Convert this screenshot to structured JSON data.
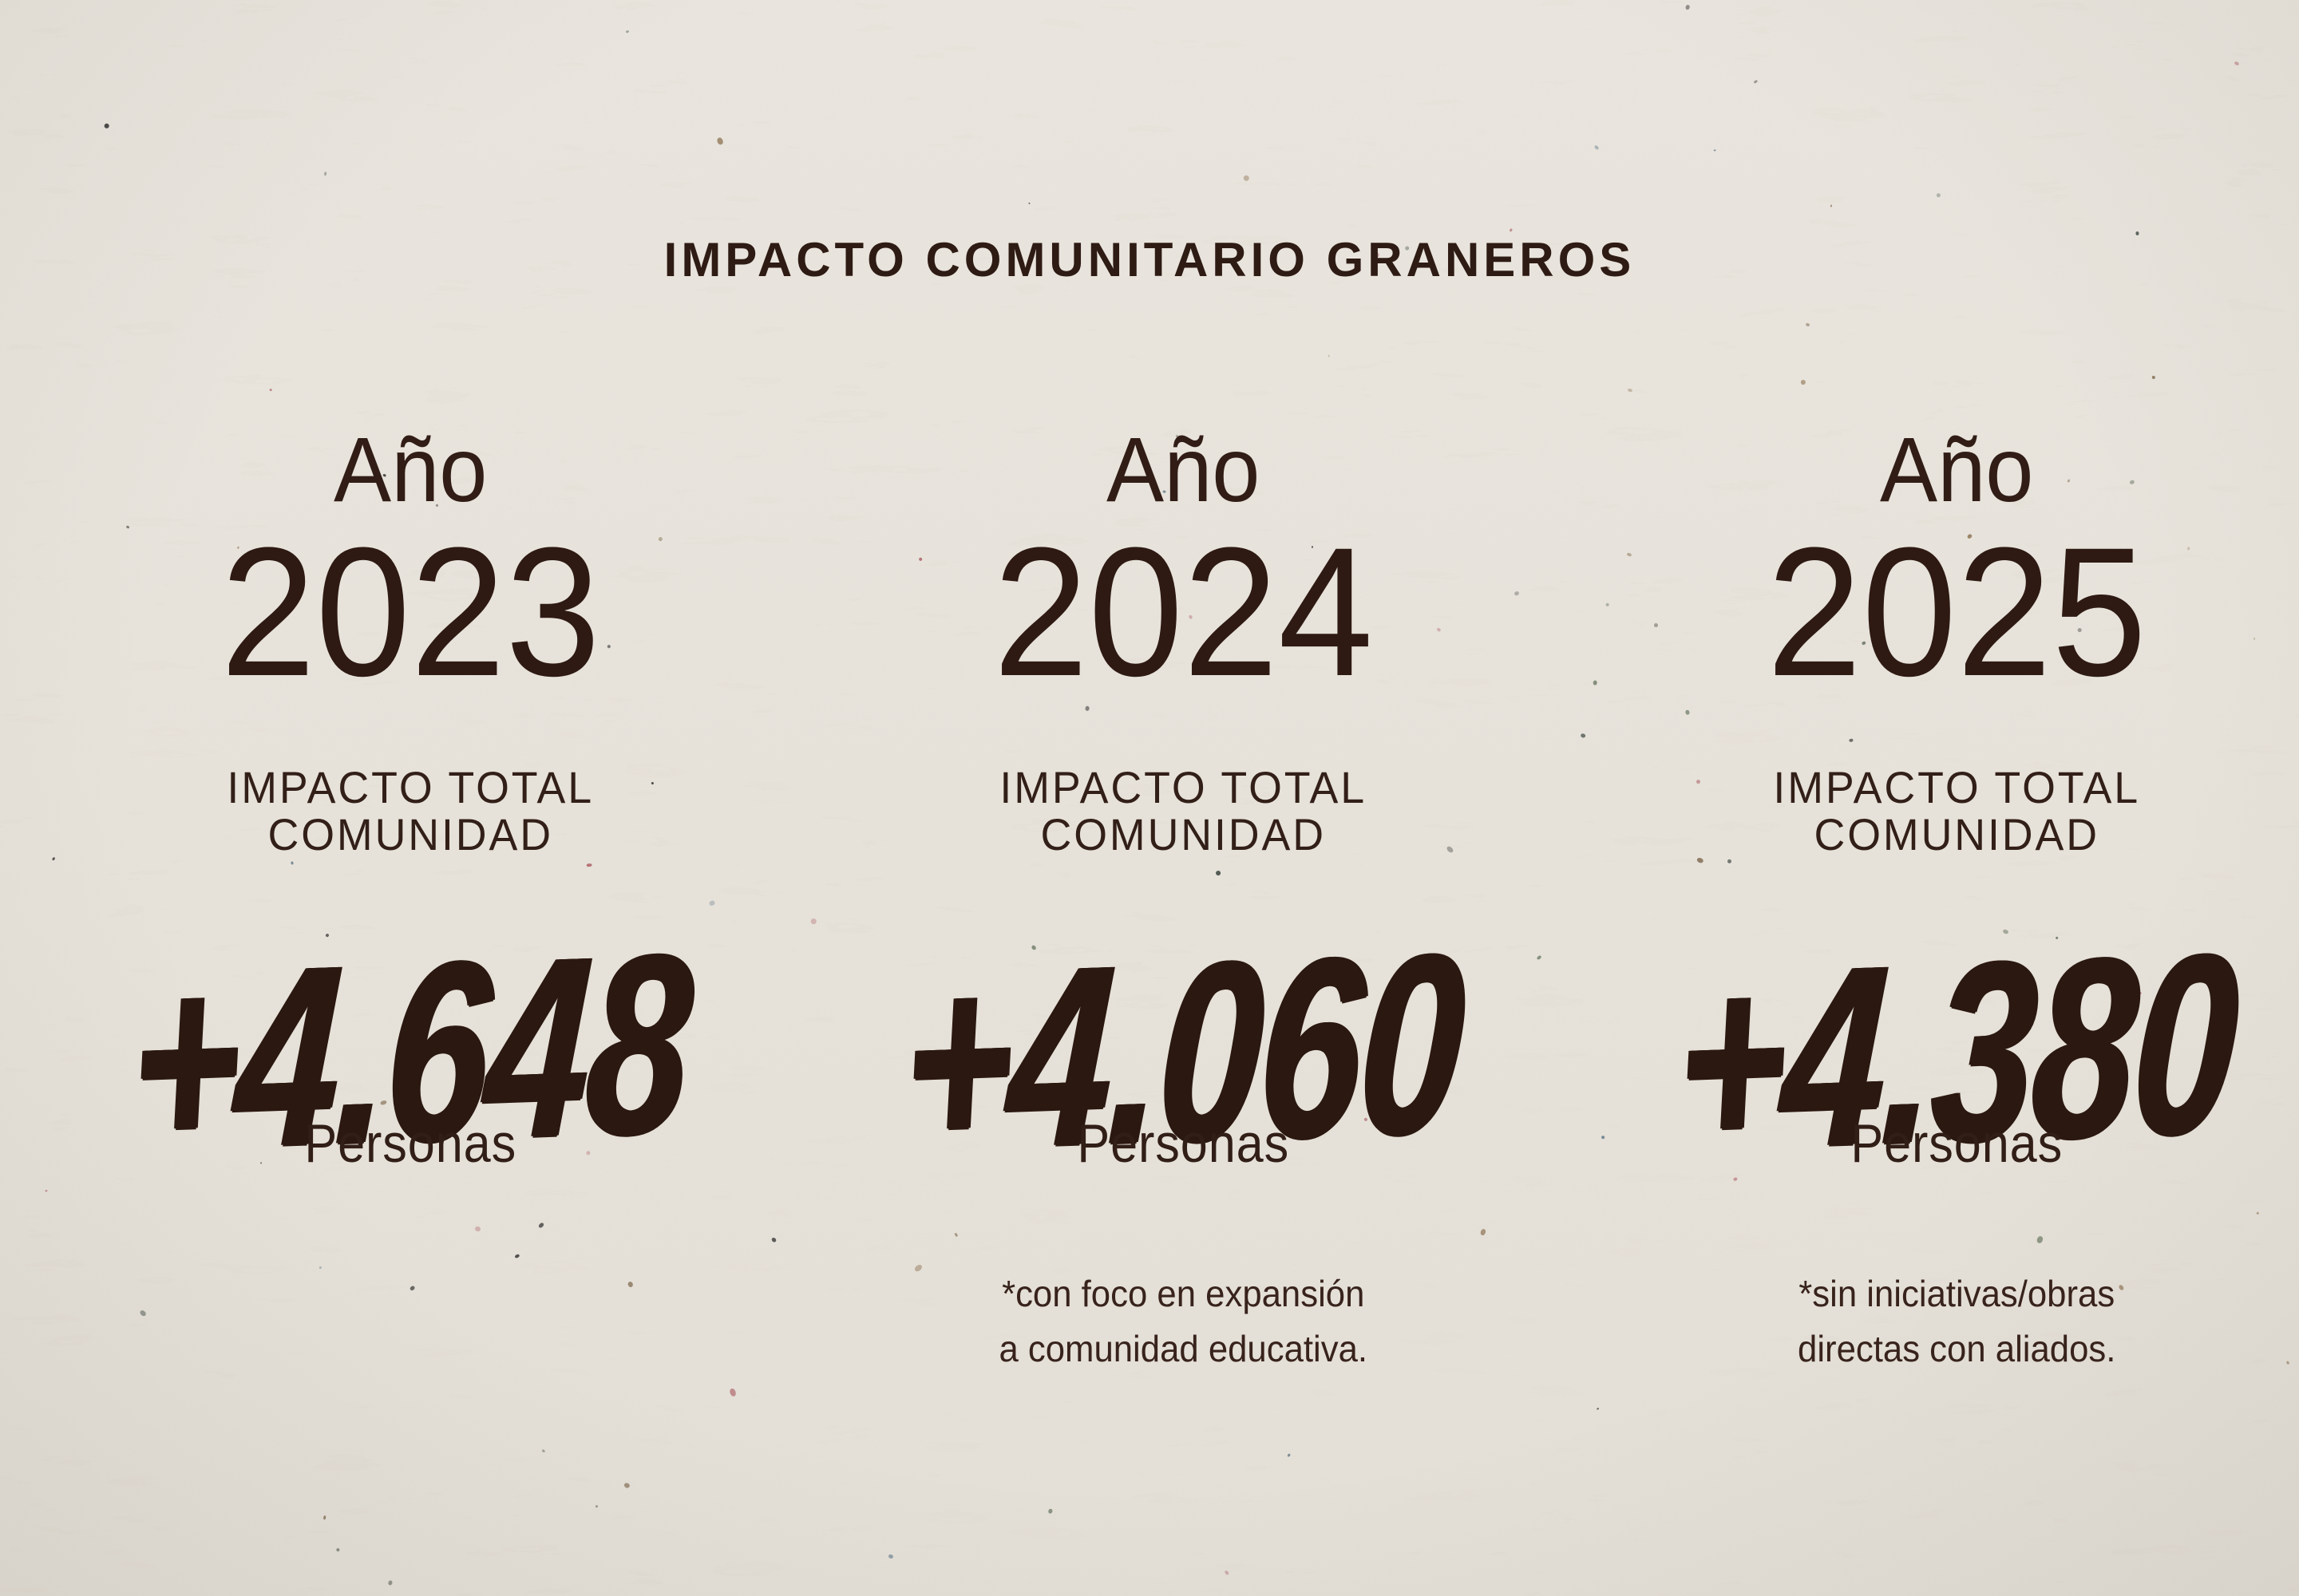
{
  "header": {
    "title": "IMPACTO COMUNITARIO GRANEROS"
  },
  "colors": {
    "background": "#e8e4dc",
    "text_dark_brown": "#2e1b14",
    "brush_number_brown": "#2b1810"
  },
  "columns": [
    {
      "year_label": "Año",
      "year": "2023",
      "metric_line1": "IMPACTO TOTAL",
      "metric_line2": "COMUNIDAD",
      "value": "+4.648",
      "unit": "Personas",
      "footnote_line1": "",
      "footnote_line2": ""
    },
    {
      "year_label": "Año",
      "year": "2024",
      "metric_line1": "IMPACTO TOTAL",
      "metric_line2": "COMUNIDAD",
      "value": "+4.060",
      "unit": "Personas",
      "footnote_line1": "*con foco en expansión",
      "footnote_line2": "a comunidad educativa."
    },
    {
      "year_label": "Año",
      "year": "2025",
      "metric_line1": "IMPACTO TOTAL",
      "metric_line2": "COMUNIDAD",
      "value": "+4.380",
      "unit": "Personas",
      "footnote_line1": "*sin iniciativas/obras",
      "footnote_line2": "directas con aliados."
    }
  ],
  "chart_data": {
    "type": "table",
    "title": "IMPACTO COMUNITARIO GRANEROS",
    "categories": [
      "2023",
      "2024",
      "2025"
    ],
    "series": [
      {
        "name": "Impacto total comunidad (personas)",
        "values": [
          4648,
          4060,
          4380
        ]
      }
    ],
    "ylabel": "Personas",
    "annotations": [
      "2024: *con foco en expansión a comunidad educativa.",
      "2025: *sin iniciativas/obras directas con aliados."
    ],
    "legend_position": "none",
    "grid": false
  }
}
